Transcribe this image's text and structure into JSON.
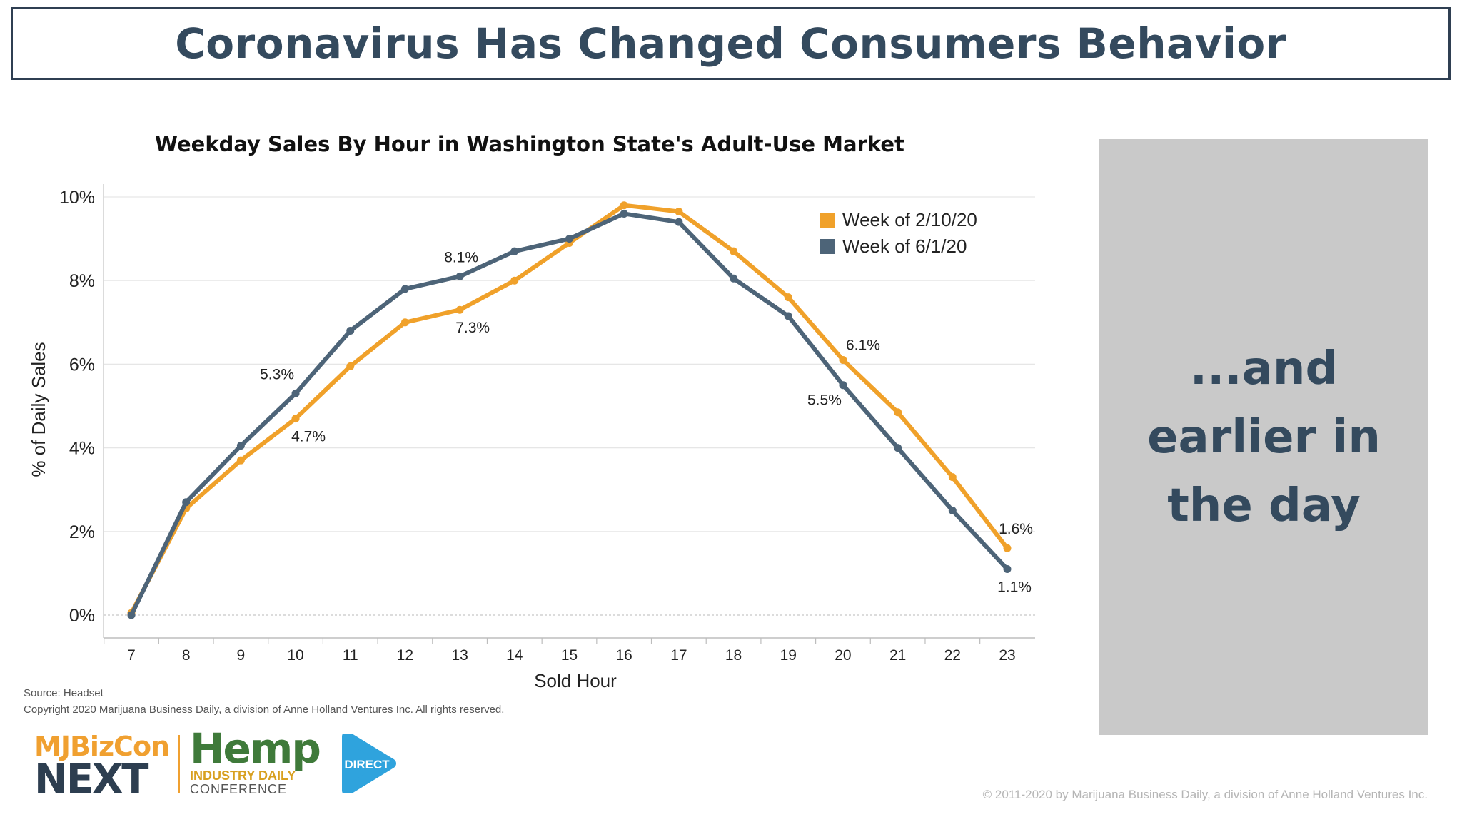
{
  "slide": {
    "title": "Coronavirus Has Changed Consumers Behavior",
    "side_text": "...and earlier in the day",
    "source": "Source: Headset",
    "copyright": "Copyright 2020 Marijuana Business Daily, a division of Anne Holland Ventures Inc. All rights reserved.",
    "footer_copyright": "© 2011-2020 by Marijuana Business Daily, a division of Anne Holland Ventures Inc."
  },
  "logos": {
    "mjbizcon_top": "MJBizCon",
    "mjbizcon_bottom": "NEXT",
    "hemp_word": "Hemp",
    "hemp_sub": "INDUSTRY DAILY",
    "hemp_conf": "CONFERENCE",
    "direct": "DIRECT"
  },
  "colors": {
    "series_a": "#f0a12a",
    "series_b": "#4d6478",
    "title_text": "#344a5e",
    "panel_bg": "#c9c9c9"
  },
  "chart_data": {
    "type": "line",
    "title": "Weekday Sales By Hour in Washington State's Adult-Use Market",
    "xlabel": "Sold Hour",
    "ylabel": "% of Daily Sales",
    "x": [
      7,
      8,
      9,
      10,
      11,
      12,
      13,
      14,
      15,
      16,
      17,
      18,
      19,
      20,
      21,
      22,
      23
    ],
    "yticks": [
      "0%",
      "2%",
      "4%",
      "6%",
      "8%",
      "10%"
    ],
    "ylim": [
      0,
      10
    ],
    "grid": true,
    "legend": "top-right",
    "series": [
      {
        "name": "Week of 2/10/20",
        "color": "#f0a12a",
        "values": [
          0.05,
          2.55,
          3.7,
          4.7,
          5.95,
          7.0,
          7.3,
          8.0,
          8.9,
          9.8,
          9.65,
          8.7,
          7.6,
          6.1,
          4.85,
          3.3,
          1.6
        ]
      },
      {
        "name": "Week of 6/1/20",
        "color": "#4d6478",
        "values": [
          0.0,
          2.7,
          4.05,
          5.3,
          6.8,
          7.8,
          8.1,
          8.7,
          9.0,
          9.6,
          9.4,
          8.05,
          7.15,
          5.5,
          4.0,
          2.5,
          1.1
        ]
      }
    ],
    "annotations": [
      {
        "series": 1,
        "x": 10,
        "text": "5.3%",
        "pos": "above"
      },
      {
        "series": 0,
        "x": 10,
        "text": "4.7%",
        "pos": "below"
      },
      {
        "series": 1,
        "x": 13,
        "text": "8.1%",
        "pos": "above"
      },
      {
        "series": 0,
        "x": 13,
        "text": "7.3%",
        "pos": "below"
      },
      {
        "series": 0,
        "x": 20,
        "text": "6.1%",
        "pos": "above-right"
      },
      {
        "series": 1,
        "x": 20,
        "text": "5.5%",
        "pos": "below-left"
      },
      {
        "series": 0,
        "x": 23,
        "text": "1.6%",
        "pos": "above"
      },
      {
        "series": 1,
        "x": 23,
        "text": "1.1%",
        "pos": "below"
      }
    ]
  }
}
